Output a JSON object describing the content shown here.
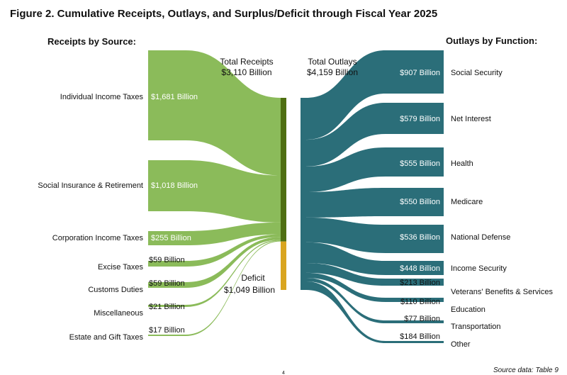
{
  "title": "Figure 2. Cumulative Receipts, Outlays, and Surplus/Deficit through Fiscal Year 2025",
  "left_heading": "Receipts by Source:",
  "right_heading": "Outlays by Function:",
  "total_receipts": {
    "line1": "Total Receipts",
    "line2": "$3,110 Billion"
  },
  "total_outlays": {
    "line1": "Total Outlays",
    "line2": "$4,159 Billion"
  },
  "deficit": {
    "line1": "Deficit",
    "line2": "$1,049 Billion"
  },
  "footer": {
    "page_number": "4",
    "source": "Source data: Table 9"
  },
  "colors": {
    "receipts": "#8bbb5a",
    "receipts_bar": "#4f6f12",
    "deficit": "#d9a520",
    "outlays": "#2b6e79",
    "text": "#111111"
  },
  "receipts": [
    {
      "name": "Individual Income Taxes",
      "value": 1681,
      "value_label": "$1,681 Billion"
    },
    {
      "name": "Social Insurance & Retirement",
      "value": 1018,
      "value_label": "$1,018 Billion"
    },
    {
      "name": "Corporation Income Taxes",
      "value": 255,
      "value_label": "$255 Billion"
    },
    {
      "name": "Excise Taxes",
      "value": 59,
      "value_label": "$59 Billion"
    },
    {
      "name": "Customs Duties",
      "value": 59,
      "value_label": "$59 Billion"
    },
    {
      "name": "Miscellaneous",
      "value": 21,
      "value_label": "$21 Billion"
    },
    {
      "name": "Estate and Gift Taxes",
      "value": 17,
      "value_label": "$17 Billion"
    }
  ],
  "outlays": [
    {
      "name": "Social Security",
      "value": 907,
      "value_label": "$907 Billion"
    },
    {
      "name": "Net Interest",
      "value": 579,
      "value_label": "$579 Billion"
    },
    {
      "name": "Health",
      "value": 555,
      "value_label": "$555 Billion"
    },
    {
      "name": "Medicare",
      "value": 550,
      "value_label": "$550 Billion"
    },
    {
      "name": "National Defense",
      "value": 536,
      "value_label": "$536 Billion"
    },
    {
      "name": "Income Security",
      "value": 448,
      "value_label": "$448 Billion"
    },
    {
      "name": "Veterans' Benefits & Services",
      "value": 213,
      "value_label": "$213 Billion"
    },
    {
      "name": "Education",
      "value": 110,
      "value_label": "$110 Billion"
    },
    {
      "name": "Transportation",
      "value": 77,
      "value_label": "$77 Billion"
    },
    {
      "name": "Other",
      "value": 184,
      "value_label": "$184 Billion"
    }
  ]
}
